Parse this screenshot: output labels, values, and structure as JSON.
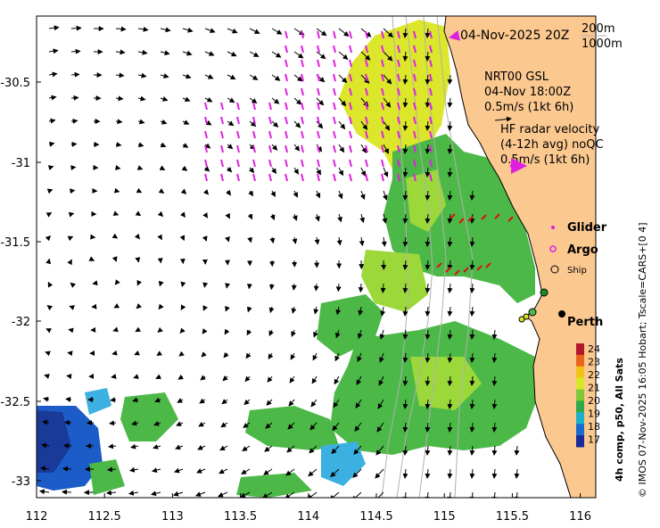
{
  "map": {
    "timestamp": "04-Nov-2025 20Z",
    "isobath_labels": [
      "200m",
      "1000m"
    ],
    "nrt": {
      "line1": "NRT00 GSL",
      "line2": "04-Nov 18:00Z",
      "line3": "0.5m/s (1kt 6h)"
    },
    "hf": {
      "line1": "HF radar velocity",
      "line2": "(4-12h avg) noQC",
      "line3": "0.5m/s (1kt 6h)"
    },
    "legend": [
      {
        "label": "Glider",
        "color": "#e020e0"
      },
      {
        "label": "Argo",
        "color": "#e020e0"
      },
      {
        "label": "Ship",
        "color": "#000000"
      }
    ],
    "city": "Perth",
    "x_ticks": [
      "112",
      "112.5",
      "113",
      "113.5",
      "114",
      "114.5",
      "115",
      "115.5",
      "116"
    ],
    "y_ticks": [
      "-30.5",
      "-31",
      "-31.5",
      "-32",
      "-32.5",
      "-33"
    ],
    "colorbar": {
      "ticks": [
        "24",
        "23",
        "22",
        "21",
        "20",
        "19",
        "18",
        "17"
      ],
      "colors": [
        "#b2182b",
        "#e8641b",
        "#f2c21a",
        "#d8e62a",
        "#7cc83a",
        "#2ea84a",
        "#1cb0c8",
        "#1a6ad0",
        "#1a2a9a"
      ],
      "title": "4h comp, p50, All Sats"
    },
    "credit": "© IMOS 07-Nov-2025 16:05 Hobart; Tscale=CARS+[0 4]",
    "land_color": "#fbc890",
    "sst_colors": {
      "yellow": "#dce62a",
      "lime": "#9cd83a",
      "green": "#4cb848",
      "blue": "#1c5cc8",
      "cyan": "#3cb0e0"
    }
  }
}
